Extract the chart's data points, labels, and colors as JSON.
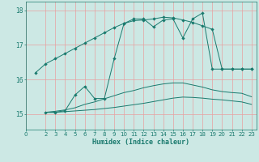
{
  "xlabel": "Humidex (Indice chaleur)",
  "bg_color": "#cce8e4",
  "line_color": "#1a7a6e",
  "grid_color": "#e8a0a0",
  "xlim": [
    0,
    23.5
  ],
  "ylim": [
    14.55,
    18.25
  ],
  "yticks": [
    15,
    16,
    17,
    18
  ],
  "xticks": [
    0,
    2,
    3,
    4,
    5,
    6,
    7,
    8,
    9,
    10,
    11,
    12,
    13,
    14,
    15,
    16,
    17,
    18,
    19,
    20,
    21,
    22,
    23
  ],
  "line1_x": [
    1,
    2,
    3,
    4,
    5,
    6,
    7,
    8,
    9,
    10,
    11,
    12,
    13,
    14,
    15,
    16,
    17,
    18,
    19,
    20,
    21,
    22,
    23
  ],
  "line1_y": [
    16.2,
    16.45,
    16.6,
    16.75,
    16.9,
    17.05,
    17.2,
    17.35,
    17.5,
    17.62,
    17.7,
    17.72,
    17.75,
    17.8,
    17.78,
    17.72,
    17.65,
    17.55,
    17.45,
    16.3,
    16.3,
    16.3,
    16.3
  ],
  "line2_x": [
    2,
    3,
    4,
    5,
    6,
    7,
    8,
    9,
    10,
    11,
    12,
    13,
    14,
    15,
    16,
    17,
    18,
    19,
    20,
    21,
    22,
    23
  ],
  "line2_y": [
    15.05,
    15.05,
    15.1,
    15.55,
    15.8,
    15.45,
    15.45,
    16.6,
    17.62,
    17.75,
    17.75,
    17.52,
    17.72,
    17.75,
    17.2,
    17.75,
    17.92,
    16.3,
    16.3,
    16.3,
    16.3,
    16.3
  ],
  "line3_x": [
    2,
    3,
    4,
    5,
    6,
    7,
    8,
    9,
    10,
    11,
    12,
    13,
    14,
    15,
    16,
    17,
    18,
    19,
    20,
    21,
    22,
    23
  ],
  "line3_y": [
    15.05,
    15.08,
    15.12,
    15.18,
    15.28,
    15.35,
    15.44,
    15.53,
    15.62,
    15.68,
    15.76,
    15.82,
    15.87,
    15.9,
    15.9,
    15.84,
    15.78,
    15.7,
    15.65,
    15.62,
    15.6,
    15.5
  ],
  "line4_x": [
    2,
    3,
    4,
    5,
    6,
    7,
    8,
    9,
    10,
    11,
    12,
    13,
    14,
    15,
    16,
    17,
    18,
    19,
    20,
    21,
    22,
    23
  ],
  "line4_y": [
    15.05,
    15.05,
    15.07,
    15.09,
    15.11,
    15.13,
    15.16,
    15.19,
    15.23,
    15.27,
    15.31,
    15.36,
    15.41,
    15.46,
    15.49,
    15.48,
    15.46,
    15.43,
    15.41,
    15.38,
    15.35,
    15.28
  ],
  "markersize": 2.2
}
